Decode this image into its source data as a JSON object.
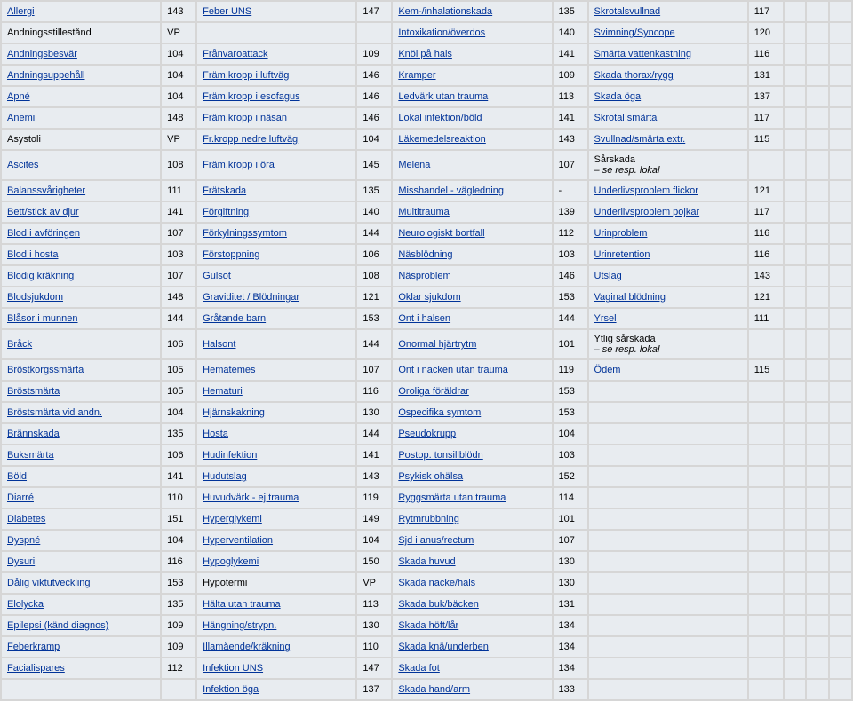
{
  "columns": [
    {
      "k": "c1",
      "items": [
        {
          "label": "Allergi",
          "value": "143",
          "link": true
        },
        {
          "label": "Andningsstillestånd",
          "value": "VP",
          "link": false
        },
        {
          "label": "Andningsbesvär",
          "value": "104",
          "link": true
        },
        {
          "label": "Andningsuppehåll",
          "value": "104",
          "link": true
        },
        {
          "label": "Apné",
          "value": "104",
          "link": true
        },
        {
          "label": "Anemi",
          "value": "148",
          "link": true
        },
        {
          "label": "Asystoli",
          "value": "VP",
          "link": false
        },
        {
          "label": "Ascites",
          "value": "108",
          "link": true
        },
        {
          "label": "Balanssvårigheter",
          "value": "111",
          "link": true
        },
        {
          "label": "Bett/stick av djur",
          "value": "141",
          "link": true
        },
        {
          "label": "Blod i avföringen",
          "value": "107",
          "link": true
        },
        {
          "label": "Blod i hosta",
          "value": "103",
          "link": true
        },
        {
          "label": "Blodig kräkning",
          "value": "107",
          "link": true
        },
        {
          "label": "Blodsjukdom",
          "value": "148",
          "link": true
        },
        {
          "label": "Blåsor i munnen",
          "value": "144",
          "link": true
        },
        {
          "label": "Bråck",
          "value": "106",
          "link": true
        },
        {
          "label": "Bröstkorgssmärta",
          "value": "105",
          "link": true
        },
        {
          "label": "Bröstsmärta",
          "value": "105",
          "link": true
        },
        {
          "label": "Bröstsmärta vid andn.",
          "value": "104",
          "link": true
        },
        {
          "label": "Brännskada",
          "value": "135",
          "link": true
        },
        {
          "label": "Buksmärta",
          "value": "106",
          "link": true
        },
        {
          "label": "Böld",
          "value": "141",
          "link": true
        },
        {
          "label": "Diarré",
          "value": "110",
          "link": true
        },
        {
          "label": "Diabetes",
          "value": "151",
          "link": true
        },
        {
          "label": "Dyspné",
          "value": "104",
          "link": true
        },
        {
          "label": "Dysuri",
          "value": "116",
          "link": true
        },
        {
          "label": "Dålig viktutveckling",
          "value": "153",
          "link": true
        },
        {
          "label": "Elolycka",
          "value": "135",
          "link": true
        },
        {
          "label": "Epilepsi (känd diagnos)",
          "value": "109",
          "link": true
        },
        {
          "label": "Feberkramp",
          "value": "109",
          "link": true
        },
        {
          "label": "Facialispares",
          "value": "112",
          "link": true
        },
        {
          "label": "",
          "value": "",
          "link": false
        }
      ]
    },
    {
      "k": "c2",
      "items": [
        {
          "label": "Feber UNS",
          "value": "147",
          "link": true
        },
        {
          "label": "",
          "value": "",
          "link": false
        },
        {
          "label": "Frånvaroattack",
          "value": "109",
          "link": true
        },
        {
          "label": "Främ.kropp i luftväg",
          "value": "146",
          "link": true
        },
        {
          "label": "Främ.kropp i esofagus",
          "value": "146",
          "link": true
        },
        {
          "label": "Främ.kropp i näsan",
          "value": "146",
          "link": true
        },
        {
          "label": "Fr.kropp nedre luftväg",
          "value": "104",
          "link": true
        },
        {
          "label": "Främ.kropp i öra",
          "value": "145",
          "link": true
        },
        {
          "label": "Frätskada",
          "value": "135",
          "link": true
        },
        {
          "label": "Förgiftning",
          "value": "140",
          "link": true
        },
        {
          "label": "Förkylningssymtom",
          "value": "144",
          "link": true
        },
        {
          "label": "Förstoppning",
          "value": "106",
          "link": true
        },
        {
          "label": "Gulsot",
          "value": "108",
          "link": true
        },
        {
          "label": "Graviditet / Blödningar",
          "value": "121",
          "link": true
        },
        {
          "label": "Gråtande barn",
          "value": "153",
          "link": true
        },
        {
          "label": "Halsont",
          "value": "144",
          "link": true
        },
        {
          "label": "Hematemes",
          "value": "107",
          "link": true
        },
        {
          "label": "Hematuri",
          "value": "116",
          "link": true
        },
        {
          "label": "Hjärnskakning",
          "value": "130",
          "link": true
        },
        {
          "label": "Hosta",
          "value": "144",
          "link": true
        },
        {
          "label": "Hudinfektion",
          "value": "141",
          "link": true
        },
        {
          "label": "Hudutslag",
          "value": "143",
          "link": true
        },
        {
          "label": "Huvudvärk - ej trauma",
          "value": "119",
          "link": true
        },
        {
          "label": "Hyperglykemi",
          "value": "149",
          "link": true
        },
        {
          "label": "Hyperventilation",
          "value": "104",
          "link": true
        },
        {
          "label": "Hypoglykemi",
          "value": "150",
          "link": true
        },
        {
          "label": "Hypotermi",
          "value": "VP",
          "link": false
        },
        {
          "label": "Hälta utan trauma",
          "value": "113",
          "link": true
        },
        {
          "label": "Hängning/strypn.",
          "value": "130",
          "link": true
        },
        {
          "label": "Illamående/kräkning",
          "value": "110",
          "link": true
        },
        {
          "label": "Infektion UNS",
          "value": "147",
          "link": true
        },
        {
          "label": "Infektion öga",
          "value": "137",
          "link": true
        }
      ]
    },
    {
      "k": "c3",
      "items": [
        {
          "label": "Kem-/inhalationskada",
          "value": "135",
          "link": true
        },
        {
          "label": "Intoxikation/överdos",
          "value": "140",
          "link": true
        },
        {
          "label": "Knöl på hals",
          "value": "141",
          "link": true
        },
        {
          "label": "Kramper",
          "value": "109",
          "link": true
        },
        {
          "label": "Ledvärk utan trauma",
          "value": "113",
          "link": true
        },
        {
          "label": "Lokal infektion/böld",
          "value": "141",
          "link": true
        },
        {
          "label": "Läkemedelsreaktion",
          "value": "143",
          "link": true
        },
        {
          "label": "Melena",
          "value": "107",
          "link": true
        },
        {
          "label": "Misshandel - vägledning",
          "value": "-",
          "link": true
        },
        {
          "label": "Multitrauma",
          "value": "139",
          "link": true
        },
        {
          "label": "Neurologiskt bortfall",
          "value": "112",
          "link": true
        },
        {
          "label": "Näsblödning",
          "value": "103",
          "link": true
        },
        {
          "label": "Näsproblem",
          "value": "146",
          "link": true
        },
        {
          "label": "Oklar sjukdom",
          "value": "153",
          "link": true
        },
        {
          "label": "Ont i halsen",
          "value": "144",
          "link": true
        },
        {
          "label": "Onormal hjärtrytm",
          "value": "101",
          "link": true
        },
        {
          "label": "Ont i nacken utan trauma",
          "value": "119",
          "link": true
        },
        {
          "label": "Oroliga föräldrar",
          "value": "153",
          "link": true
        },
        {
          "label": "Ospecifika symtom",
          "value": "153",
          "link": true
        },
        {
          "label": "Pseudokrupp",
          "value": "104",
          "link": true
        },
        {
          "label": "Postop. tonsillblödn",
          "value": "103",
          "link": true
        },
        {
          "label": "Psykisk ohälsa",
          "value": "152",
          "link": true
        },
        {
          "label": "Ryggsmärta utan trauma",
          "value": "114",
          "link": true
        },
        {
          "label": "Rytmrubbning",
          "value": "101",
          "link": true
        },
        {
          "label": "Sjd i anus/rectum",
          "value": "107",
          "link": true
        },
        {
          "label": "Skada huvud",
          "value": "130",
          "link": true
        },
        {
          "label": "Skada nacke/hals",
          "value": "130",
          "link": true
        },
        {
          "label": "Skada buk/bäcken",
          "value": "131",
          "link": true
        },
        {
          "label": "Skada höft/lår",
          "value": "134",
          "link": true
        },
        {
          "label": "Skada knä/underben",
          "value": "134",
          "link": true
        },
        {
          "label": "Skada fot",
          "value": "134",
          "link": true
        },
        {
          "label": "Skada hand/arm",
          "value": "133",
          "link": true
        }
      ]
    },
    {
      "k": "c4",
      "items": [
        {
          "label": "Skrotalsvullnad",
          "value": "117",
          "link": true
        },
        {
          "label": "Svimning/Syncope",
          "value": "120",
          "link": true
        },
        {
          "label": "Smärta vattenkastning",
          "value": "116",
          "link": true
        },
        {
          "label": "Skada thorax/rygg",
          "value": "131",
          "link": true
        },
        {
          "label": "Skada öga",
          "value": "137",
          "link": true
        },
        {
          "label": "Skrotal smärta",
          "value": "117",
          "link": true
        },
        {
          "label": "Svullnad/smärta extr.",
          "value": "115",
          "link": true
        },
        {
          "label": "Sårskada\n           – se resp. lokal",
          "value": "",
          "link": false,
          "italic": true
        },
        {
          "label": "Underlivsproblem flickor",
          "value": "121",
          "link": true
        },
        {
          "label": "Underlivsproblem pojkar",
          "value": "117",
          "link": true
        },
        {
          "label": "Urinproblem",
          "value": "116",
          "link": true
        },
        {
          "label": "Urinretention",
          "value": "116",
          "link": true
        },
        {
          "label": "Utslag",
          "value": "143",
          "link": true
        },
        {
          "label": "Vaginal blödning",
          "value": "121",
          "link": true
        },
        {
          "label": "Yrsel",
          "value": "111",
          "link": true
        },
        {
          "label": "Ytlig sårskada\n           – se resp. lokal",
          "value": "",
          "link": false,
          "italic": true
        },
        {
          "label": "Ödem",
          "value": "115",
          "link": true
        },
        {
          "label": "",
          "value": "",
          "link": false
        },
        {
          "label": "",
          "value": "",
          "link": false
        },
        {
          "label": "",
          "value": "",
          "link": false
        },
        {
          "label": "",
          "value": "",
          "link": false
        },
        {
          "label": "",
          "value": "",
          "link": false
        },
        {
          "label": "",
          "value": "",
          "link": false
        },
        {
          "label": "",
          "value": "",
          "link": false
        },
        {
          "label": "",
          "value": "",
          "link": false
        },
        {
          "label": "",
          "value": "",
          "link": false
        },
        {
          "label": "",
          "value": "",
          "link": false
        },
        {
          "label": "",
          "value": "",
          "link": false
        },
        {
          "label": "",
          "value": "",
          "link": false
        },
        {
          "label": "",
          "value": "",
          "link": false
        },
        {
          "label": "",
          "value": "",
          "link": false
        },
        {
          "label": "",
          "value": "",
          "link": false
        }
      ]
    }
  ],
  "rowCount": 32
}
